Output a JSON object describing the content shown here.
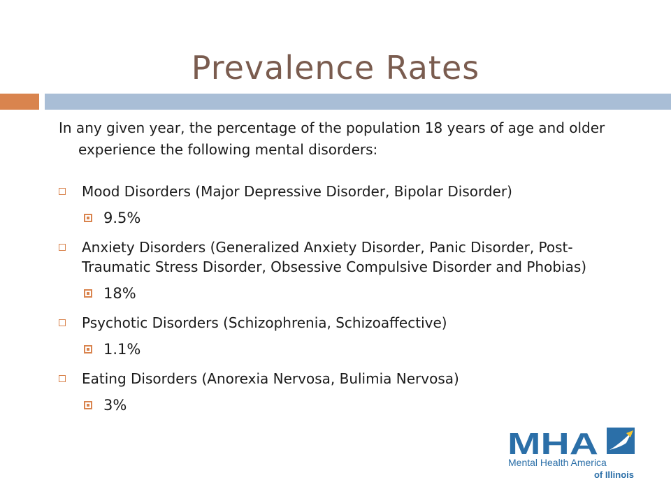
{
  "slide": {
    "title": "Prevalence Rates",
    "intro": "In any given year, the percentage of the population 18 years of age and older experience the following mental disorders:",
    "items": [
      {
        "label": "Mood Disorders (Major Depressive Disorder, Bipolar Disorder)",
        "value": "9.5%"
      },
      {
        "label": "Anxiety Disorders  (Generalized Anxiety Disorder, Panic Disorder, Post-Traumatic Stress Disorder, Obsessive Compulsive Disorder and Phobias)",
        "value": "18%"
      },
      {
        "label": "Psychotic Disorders (Schizophrenia, Schizoaffective)",
        "value": "1.1%"
      },
      {
        "label": "Eating Disorders (Anorexia Nervosa, Bulimia Nervosa)",
        "value": "3%"
      }
    ]
  },
  "logo": {
    "mark": "MHA",
    "tagline": "Mental Health America",
    "region": "of Illinois"
  },
  "colors": {
    "title": "#7a5c4f",
    "accent": "#d9844e",
    "bar": "#a9bed6",
    "logo": "#2b6fa8"
  }
}
